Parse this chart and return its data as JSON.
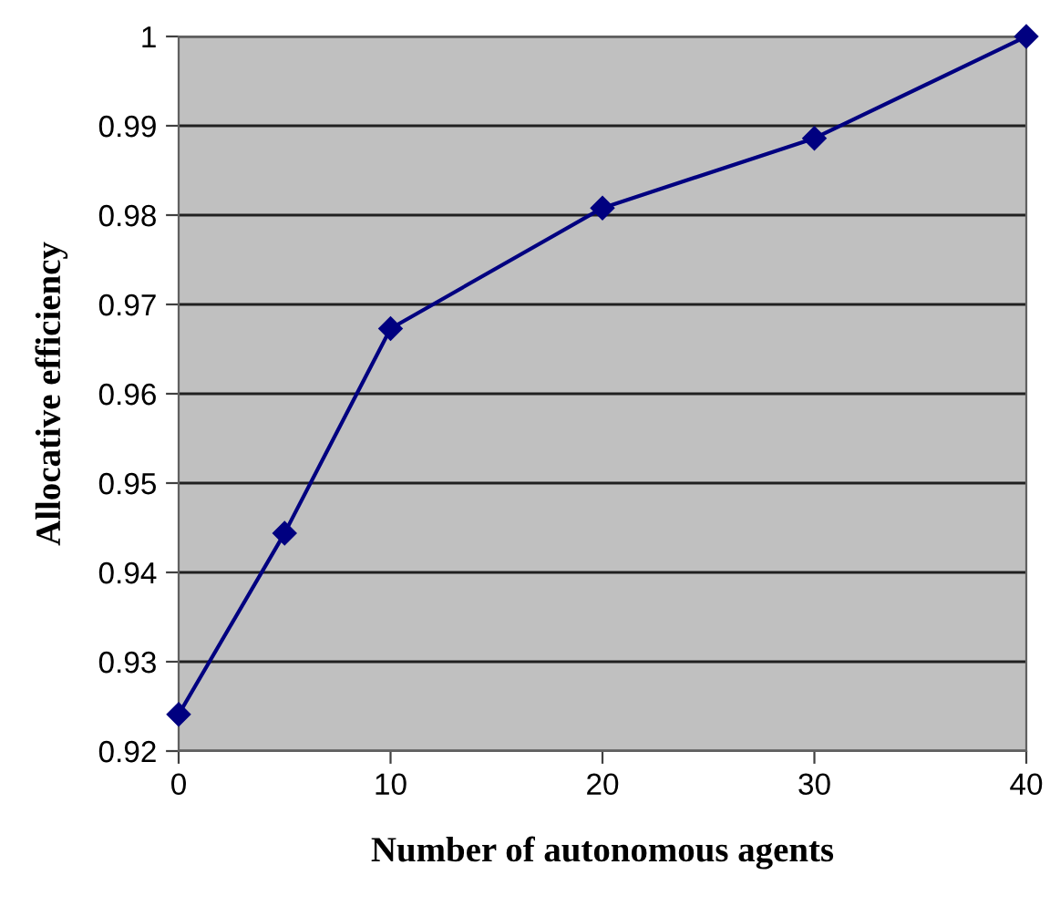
{
  "chart_data": {
    "type": "line",
    "xlabel": "Number of autonomous agents",
    "ylabel": "Allocative efficiency",
    "x": [
      0,
      5,
      10,
      20,
      30,
      40
    ],
    "series": [
      {
        "color": "#000080",
        "values": [
          0.9241,
          0.9444,
          0.9673,
          0.9808,
          0.9886,
          1.0
        ]
      }
    ],
    "xlim": [
      0,
      40
    ],
    "xticks": [
      0,
      10,
      20,
      30,
      40
    ],
    "ylim": [
      0.92,
      1.0
    ],
    "yticks": [
      0.92,
      0.93,
      0.94,
      0.95,
      0.96,
      0.97,
      0.98,
      0.99,
      1
    ],
    "grid": "y",
    "marker": "diamond",
    "line_style": "solid",
    "legend": false
  }
}
